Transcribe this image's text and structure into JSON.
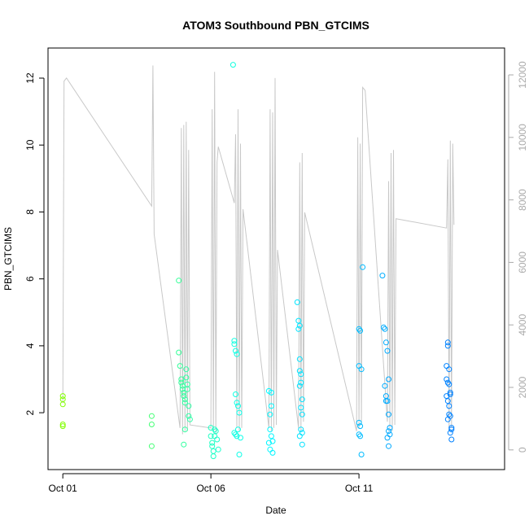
{
  "chart_data": {
    "type": "scatter",
    "title": "ATOM3 Southbound PBN_GTCIMS",
    "xlabel": "Date",
    "ylabel": "PBN_GTCIMS",
    "x_axis": {
      "unit": "date",
      "range": [
        "2023-09-30T12:00",
        "2023-10-15T22:00"
      ],
      "ticks": [
        {
          "value": "2023-10-01",
          "label": "Oct 01"
        },
        {
          "value": "2023-10-06",
          "label": "Oct 06"
        },
        {
          "value": "2023-10-11",
          "label": "Oct 11"
        }
      ]
    },
    "y_axis_left": {
      "range": [
        0.3,
        12.9
      ],
      "ticks": [
        2,
        4,
        6,
        8,
        10,
        12
      ]
    },
    "y_axis_right": {
      "range": [
        -630,
        12860
      ],
      "ticks": [
        0,
        2000,
        4000,
        6000,
        8000,
        10000,
        12000
      ],
      "color": "#aaaaaa"
    },
    "grid": false,
    "legend": "none",
    "background_series": {
      "axis": "right",
      "color": "#c8c8c8",
      "points": [
        [
          "2023-10-01T00:00",
          1500
        ],
        [
          "2023-10-01T01:00",
          11800
        ],
        [
          "2023-10-01T03:00",
          11900
        ],
        [
          "2023-10-04T00:00",
          7800
        ],
        [
          "2023-10-04T01:00",
          12300
        ],
        [
          "2023-10-04T02:00",
          6900
        ],
        [
          "2023-10-04T23:00",
          700
        ],
        [
          "2023-10-05T00:00",
          10300
        ],
        [
          "2023-10-05T01:00",
          500
        ],
        [
          "2023-10-05T02:00",
          10400
        ],
        [
          "2023-10-05T03:00",
          600
        ],
        [
          "2023-10-05T04:00",
          10500
        ],
        [
          "2023-10-05T05:00",
          600
        ],
        [
          "2023-10-05T06:00",
          9600
        ],
        [
          "2023-10-05T07:00",
          800
        ],
        [
          "2023-10-06T00:00",
          700
        ],
        [
          "2023-10-06T01:00",
          10900
        ],
        [
          "2023-10-06T02:00",
          600
        ],
        [
          "2023-10-06T03:00",
          12100
        ],
        [
          "2023-10-06T04:00",
          500
        ],
        [
          "2023-10-06T05:00",
          9200
        ],
        [
          "2023-10-06T06:00",
          9700
        ],
        [
          "2023-10-06T19:00",
          7900
        ],
        [
          "2023-10-06T20:00",
          10100
        ],
        [
          "2023-10-06T21:00",
          700
        ],
        [
          "2023-10-06T22:00",
          10900
        ],
        [
          "2023-10-06T23:00",
          600
        ],
        [
          "2023-10-07T00:00",
          9800
        ],
        [
          "2023-10-07T01:00",
          700
        ],
        [
          "2023-10-07T02:00",
          7700
        ],
        [
          "2023-10-07T23:00",
          700
        ],
        [
          "2023-10-08T00:00",
          10900
        ],
        [
          "2023-10-08T01:00",
          600
        ],
        [
          "2023-10-08T02:00",
          10800
        ],
        [
          "2023-10-08T03:00",
          700
        ],
        [
          "2023-10-08T04:00",
          11900
        ],
        [
          "2023-10-08T05:00",
          800
        ],
        [
          "2023-10-08T06:00",
          6400
        ],
        [
          "2023-10-08T23:00",
          700
        ],
        [
          "2023-10-09T00:00",
          9200
        ],
        [
          "2023-10-09T01:00",
          600
        ],
        [
          "2023-10-09T02:00",
          9500
        ],
        [
          "2023-10-09T03:00",
          900
        ],
        [
          "2023-10-09T04:00",
          7600
        ],
        [
          "2023-10-10T22:00",
          600
        ],
        [
          "2023-10-10T23:00",
          10000
        ],
        [
          "2023-10-11T00:00",
          700
        ],
        [
          "2023-10-11T01:00",
          9800
        ],
        [
          "2023-10-11T02:00",
          800
        ],
        [
          "2023-10-11T03:00",
          11600
        ],
        [
          "2023-10-11T05:00",
          11500
        ],
        [
          "2023-10-11T23:00",
          900
        ],
        [
          "2023-10-12T00:00",
          8600
        ],
        [
          "2023-10-12T01:00",
          700
        ],
        [
          "2023-10-12T02:00",
          9500
        ],
        [
          "2023-10-12T03:00",
          600
        ],
        [
          "2023-10-12T04:00",
          9600
        ],
        [
          "2023-10-12T05:00",
          800
        ],
        [
          "2023-10-12T06:00",
          7400
        ],
        [
          "2023-10-13T23:00",
          7100
        ],
        [
          "2023-10-14T00:00",
          9300
        ],
        [
          "2023-10-14T01:00",
          600
        ],
        [
          "2023-10-14T02:00",
          9900
        ],
        [
          "2023-10-14T03:00",
          700
        ],
        [
          "2023-10-14T04:00",
          9800
        ],
        [
          "2023-10-14T05:00",
          7200
        ]
      ]
    },
    "series": [
      {
        "axis": "left",
        "marker": "open-circle",
        "color_gradient": [
          "#80ff00",
          "#00ffff",
          "#0080ff"
        ],
        "points": [
          [
            "2023-10-01T00:00",
            2.5
          ],
          [
            "2023-10-01T00:00",
            2.4
          ],
          [
            "2023-10-01T00:00",
            2.25
          ],
          [
            "2023-10-01T00:00",
            1.65
          ],
          [
            "2023-10-01T00:00",
            1.6
          ],
          [
            "2023-10-04T00:00",
            1.9
          ],
          [
            "2023-10-04T00:00",
            1.65
          ],
          [
            "2023-10-04T00:00",
            1.0
          ],
          [
            "2023-10-04T22:00",
            5.95
          ],
          [
            "2023-10-04T22:00",
            3.8
          ],
          [
            "2023-10-04T23:00",
            3.4
          ],
          [
            "2023-10-05T00:00",
            3.0
          ],
          [
            "2023-10-05T00:00",
            2.9
          ],
          [
            "2023-10-05T01:00",
            2.8
          ],
          [
            "2023-10-05T01:00",
            2.7
          ],
          [
            "2023-10-05T02:00",
            2.6
          ],
          [
            "2023-10-05T02:00",
            2.5
          ],
          [
            "2023-10-05T03:00",
            2.4
          ],
          [
            "2023-10-05T03:00",
            2.3
          ],
          [
            "2023-10-05T04:00",
            3.3
          ],
          [
            "2023-10-05T04:00",
            3.05
          ],
          [
            "2023-10-05T05:00",
            2.85
          ],
          [
            "2023-10-05T05:00",
            2.7
          ],
          [
            "2023-10-05T06:00",
            2.2
          ],
          [
            "2023-10-05T06:00",
            1.9
          ],
          [
            "2023-10-05T07:00",
            1.8
          ],
          [
            "2023-10-05T03:00",
            1.5
          ],
          [
            "2023-10-05T02:00",
            1.05
          ],
          [
            "2023-10-06T00:00",
            1.55
          ],
          [
            "2023-10-06T00:00",
            1.3
          ],
          [
            "2023-10-06T01:00",
            1.1
          ],
          [
            "2023-10-06T01:00",
            1.0
          ],
          [
            "2023-10-06T02:00",
            0.85
          ],
          [
            "2023-10-06T02:00",
            0.7
          ],
          [
            "2023-10-06T03:00",
            1.5
          ],
          [
            "2023-10-06T03:00",
            1.3
          ],
          [
            "2023-10-06T04:00",
            1.45
          ],
          [
            "2023-10-06T05:00",
            1.2
          ],
          [
            "2023-10-06T06:00",
            0.9
          ],
          [
            "2023-10-06T18:00",
            12.4
          ],
          [
            "2023-10-06T19:00",
            4.15
          ],
          [
            "2023-10-06T19:00",
            4.05
          ],
          [
            "2023-10-06T20:00",
            3.85
          ],
          [
            "2023-10-06T21:00",
            3.75
          ],
          [
            "2023-10-06T20:00",
            2.55
          ],
          [
            "2023-10-06T21:00",
            2.3
          ],
          [
            "2023-10-06T22:00",
            2.2
          ],
          [
            "2023-10-06T23:00",
            2.0
          ],
          [
            "2023-10-06T19:00",
            1.4
          ],
          [
            "2023-10-06T20:00",
            1.35
          ],
          [
            "2023-10-06T21:00",
            1.3
          ],
          [
            "2023-10-06T22:00",
            1.5
          ],
          [
            "2023-10-07T00:00",
            1.25
          ],
          [
            "2023-10-06T23:00",
            0.75
          ],
          [
            "2023-10-07T23:00",
            2.65
          ],
          [
            "2023-10-08T01:00",
            2.6
          ],
          [
            "2023-10-08T01:00",
            2.2
          ],
          [
            "2023-10-08T00:00",
            1.95
          ],
          [
            "2023-10-08T00:00",
            1.5
          ],
          [
            "2023-10-08T01:00",
            1.3
          ],
          [
            "2023-10-08T02:00",
            1.15
          ],
          [
            "2023-10-07T23:00",
            1.1
          ],
          [
            "2023-10-08T00:00",
            0.9
          ],
          [
            "2023-10-08T02:00",
            0.8
          ],
          [
            "2023-10-08T22:00",
            5.3
          ],
          [
            "2023-10-08T23:00",
            4.75
          ],
          [
            "2023-10-09T00:00",
            4.6
          ],
          [
            "2023-10-08T23:00",
            4.5
          ],
          [
            "2023-10-09T00:00",
            3.6
          ],
          [
            "2023-10-09T00:00",
            3.25
          ],
          [
            "2023-10-09T01:00",
            3.15
          ],
          [
            "2023-10-09T01:00",
            2.9
          ],
          [
            "2023-10-09T00:00",
            2.8
          ],
          [
            "2023-10-09T02:00",
            2.4
          ],
          [
            "2023-10-09T01:00",
            2.15
          ],
          [
            "2023-10-09T02:00",
            1.95
          ],
          [
            "2023-10-09T01:00",
            1.5
          ],
          [
            "2023-10-09T02:00",
            1.4
          ],
          [
            "2023-10-09T00:00",
            1.3
          ],
          [
            "2023-10-09T02:00",
            1.05
          ],
          [
            "2023-10-11T00:00",
            4.5
          ],
          [
            "2023-10-11T01:00",
            4.45
          ],
          [
            "2023-10-11T00:00",
            3.4
          ],
          [
            "2023-10-11T02:00",
            3.3
          ],
          [
            "2023-10-11T00:00",
            1.7
          ],
          [
            "2023-10-11T01:00",
            1.6
          ],
          [
            "2023-10-11T00:00",
            1.35
          ],
          [
            "2023-10-11T01:00",
            1.3
          ],
          [
            "2023-10-11T02:00",
            0.75
          ],
          [
            "2023-10-11T03:00",
            6.35
          ],
          [
            "2023-10-11T19:00",
            6.1
          ],
          [
            "2023-10-11T20:00",
            4.55
          ],
          [
            "2023-10-11T21:00",
            4.5
          ],
          [
            "2023-10-11T22:00",
            4.1
          ],
          [
            "2023-10-11T23:00",
            3.85
          ],
          [
            "2023-10-12T00:00",
            3.0
          ],
          [
            "2023-10-11T21:00",
            2.8
          ],
          [
            "2023-10-11T22:00",
            2.5
          ],
          [
            "2023-10-11T22:00",
            2.35
          ],
          [
            "2023-10-11T23:00",
            2.35
          ],
          [
            "2023-10-12T00:00",
            1.95
          ],
          [
            "2023-10-12T01:00",
            1.55
          ],
          [
            "2023-10-12T00:00",
            1.45
          ],
          [
            "2023-10-12T01:00",
            1.35
          ],
          [
            "2023-10-11T23:00",
            1.25
          ],
          [
            "2023-10-12T00:00",
            1.0
          ],
          [
            "2023-10-13T23:00",
            3.4
          ],
          [
            "2023-10-14T00:00",
            4.1
          ],
          [
            "2023-10-14T00:00",
            4.0
          ],
          [
            "2023-10-14T01:00",
            3.3
          ],
          [
            "2023-10-13T23:00",
            3.0
          ],
          [
            "2023-10-14T00:00",
            2.9
          ],
          [
            "2023-10-14T01:00",
            2.85
          ],
          [
            "2023-10-14T02:00",
            2.6
          ],
          [
            "2023-10-14T02:00",
            2.55
          ],
          [
            "2023-10-13T23:00",
            2.5
          ],
          [
            "2023-10-14T00:00",
            2.35
          ],
          [
            "2023-10-14T01:00",
            2.2
          ],
          [
            "2023-10-14T01:00",
            1.95
          ],
          [
            "2023-10-14T02:00",
            1.9
          ],
          [
            "2023-10-14T00:00",
            1.8
          ],
          [
            "2023-10-14T03:00",
            1.55
          ],
          [
            "2023-10-14T03:00",
            1.5
          ],
          [
            "2023-10-14T02:00",
            1.4
          ],
          [
            "2023-10-14T03:00",
            1.2
          ]
        ]
      }
    ]
  }
}
